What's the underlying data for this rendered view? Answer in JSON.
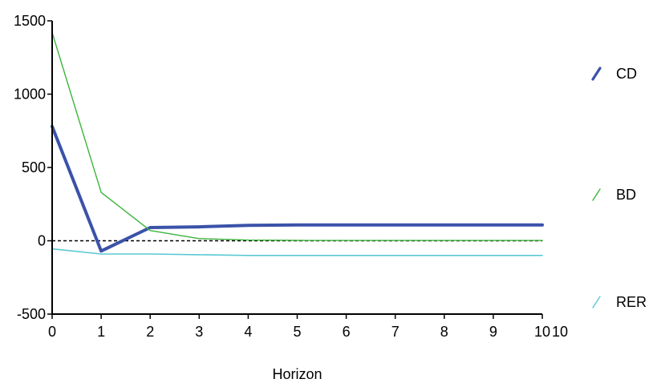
{
  "chart_data": {
    "type": "line",
    "title": "",
    "xlabel": "Horizon",
    "ylabel": "",
    "xlim": [
      0,
      10
    ],
    "ylim": [
      -500,
      1500
    ],
    "grid": false,
    "legend_position": "right",
    "x_ticks": [
      "0",
      "1",
      "2",
      "3",
      "4",
      "5",
      "6",
      "7",
      "8",
      "9",
      "10"
    ],
    "x_end_label": "10",
    "y_ticks": [
      "1500",
      "1000",
      "500",
      "0",
      "-500"
    ],
    "y_tick_values": [
      1500,
      1000,
      500,
      0,
      -500
    ],
    "reference_line": {
      "y": 0,
      "style": "dashed"
    },
    "x": [
      0,
      1,
      2,
      3,
      4,
      5,
      6,
      7,
      8,
      9,
      10
    ],
    "series": [
      {
        "name": "CD",
        "color": "#3a52a8",
        "width": 4,
        "values": [
          780,
          -70,
          90,
          95,
          105,
          108,
          108,
          108,
          108,
          108,
          108
        ]
      },
      {
        "name": "BD",
        "color": "#3cb43c",
        "width": 1.4,
        "values": [
          1420,
          330,
          70,
          15,
          5,
          3,
          2,
          2,
          2,
          2,
          2
        ]
      },
      {
        "name": "RER",
        "color": "#5bc8d4",
        "width": 1.6,
        "values": [
          -55,
          -90,
          -90,
          -95,
          -100,
          -100,
          -100,
          -100,
          -100,
          -100,
          -100
        ]
      }
    ]
  }
}
